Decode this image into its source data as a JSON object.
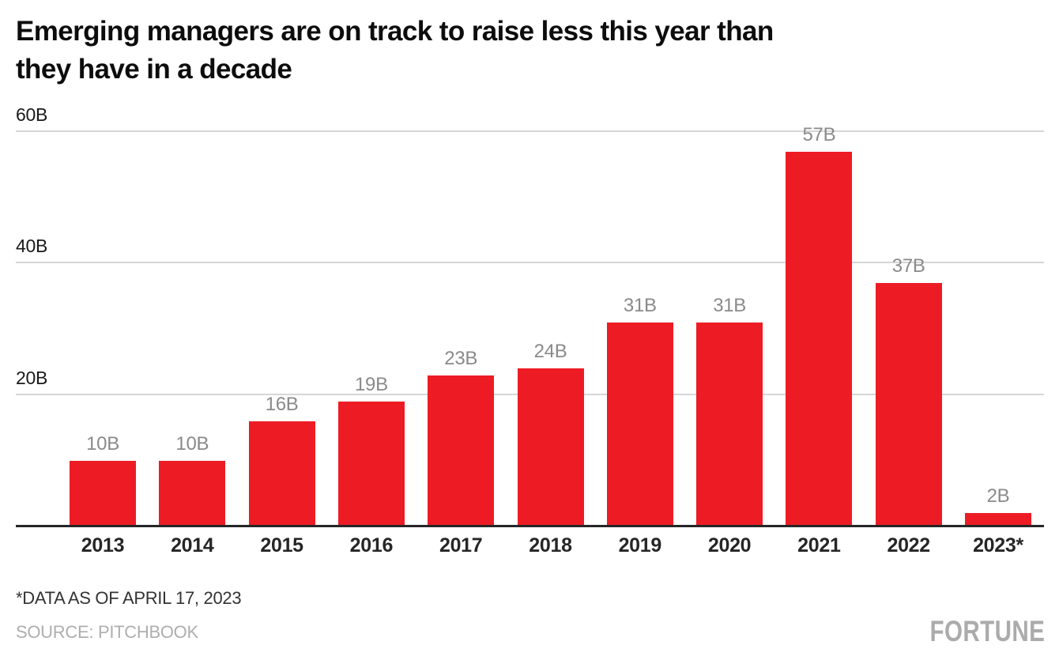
{
  "title": {
    "line1": "Emerging managers are on track to raise less this year than",
    "line2": "they have in a decade"
  },
  "chart_data": {
    "type": "bar",
    "title": "Emerging managers are on track to raise less this year than they have in a decade",
    "categories": [
      "2013",
      "2014",
      "2015",
      "2016",
      "2017",
      "2018",
      "2019",
      "2020",
      "2021",
      "2022",
      "2023*"
    ],
    "values": [
      10,
      10,
      16,
      19,
      23,
      24,
      31,
      31,
      57,
      37,
      2
    ],
    "bar_labels": [
      "10B",
      "10B",
      "16B",
      "19B",
      "23B",
      "24B",
      "31B",
      "31B",
      "57B",
      "37B",
      "2B"
    ],
    "xlabel": "",
    "ylabel": "",
    "ylim": [
      0,
      64.5
    ],
    "y_ticks": [
      {
        "value": 20,
        "label": "20B"
      },
      {
        "value": 40,
        "label": "40B"
      },
      {
        "value": 60,
        "label": "60B"
      }
    ],
    "grid": "horizontal",
    "legend": "none",
    "bar_color": "#ED1C24",
    "value_label_color": "#8a8a8a",
    "gridline_color": "#d6d6d6",
    "axis_line_color": "#262626"
  },
  "footer": {
    "footnote": "*DATA AS OF APRIL 17, 2023",
    "source": "SOURCE: PITCHBOOK",
    "logo": "FORTUNE"
  }
}
